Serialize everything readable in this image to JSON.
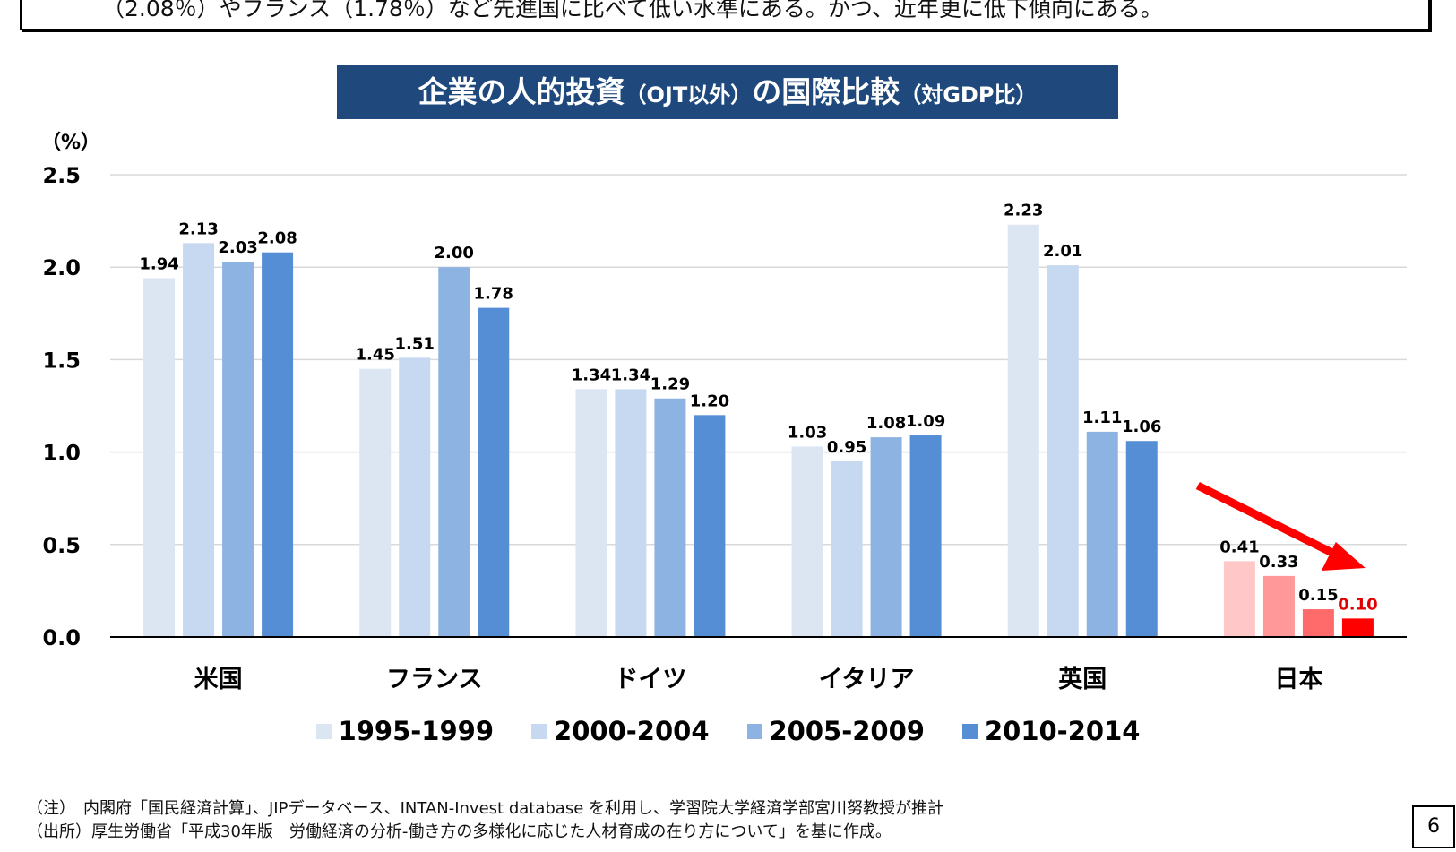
{
  "header_text": "（2.08％）やフランス（1.78％）など先進国に比べて低い水準にある。かつ、近年更に低下傾向にある。",
  "title": {
    "main": "企業の人的投資",
    "paren1": "（OJT以外）",
    "mid": "の国際比較",
    "paren2": "（対GDP比）"
  },
  "chart_data": {
    "type": "bar",
    "ylabel": "（%）",
    "ylim": [
      0,
      2.5
    ],
    "yticks": [
      "0.0",
      "0.5",
      "1.0",
      "1.5",
      "2.0",
      "2.5"
    ],
    "grid": true,
    "categories": [
      "米国",
      "フランス",
      "ドイツ",
      "イタリア",
      "英国",
      "日本"
    ],
    "series": [
      {
        "name": "1995-1999",
        "color": "#dce6f2",
        "values": [
          1.94,
          1.45,
          1.34,
          1.03,
          2.23,
          0.41
        ],
        "labels": [
          "1.94",
          "1.45",
          "1.34",
          "1.03",
          "2.23",
          "0.41"
        ]
      },
      {
        "name": "2000-2004",
        "color": "#c6d9f0",
        "values": [
          2.13,
          1.51,
          1.34,
          0.95,
          2.01,
          0.33
        ],
        "labels": [
          "2.13",
          "1.51",
          "1.34",
          "0.95",
          "2.01",
          "0.33"
        ]
      },
      {
        "name": "2005-2009",
        "color": "#8db3e2",
        "values": [
          2.03,
          2.0,
          1.29,
          1.08,
          1.11,
          0.15
        ],
        "labels": [
          "2.03",
          "2.00",
          "1.29",
          "1.08",
          "1.11",
          "0.15"
        ]
      },
      {
        "name": "2010-2014",
        "color": "#558ed5",
        "values": [
          2.08,
          1.78,
          1.2,
          1.09,
          1.06,
          0.1
        ],
        "labels": [
          "2.08",
          "1.78",
          "1.20",
          "1.09",
          "1.06",
          "0.10"
        ]
      }
    ],
    "highlight": {
      "category": "日本",
      "colors": [
        "#ffc7c7",
        "#ff9999",
        "#ff6b6b",
        "#ff0000"
      ],
      "last_label_color": "#e00000",
      "arrow_color": "#ff0000"
    },
    "legend_position": "bottom"
  },
  "notes": [
    "（注）　内閣府「国民経済計算」、JIPデータベース、INTAN-Invest database を利用し、学習院大学経済学部宮川努教授が推計",
    "（出所）厚生労働省「平成30年版　労働経済の分析-働き方の多様化に応じた人材育成の在り方について」を基に作成。"
  ],
  "page_number": "6"
}
